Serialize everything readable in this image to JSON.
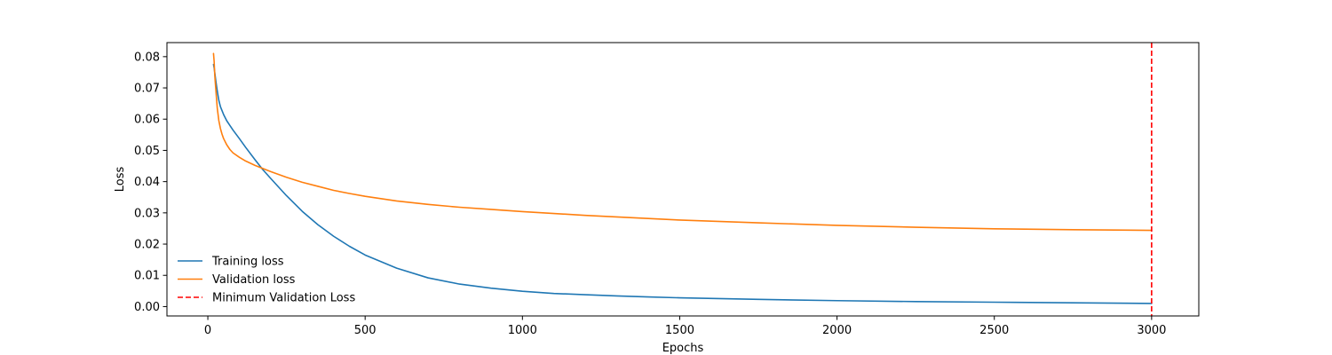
{
  "chart_data": {
    "type": "line",
    "title": "",
    "xlabel": "Epochs",
    "ylabel": "Loss",
    "xlim": [
      -130,
      3150
    ],
    "ylim": [
      -0.003,
      0.0845
    ],
    "x_ticks": [
      0,
      500,
      1000,
      1500,
      2000,
      2500,
      3000
    ],
    "x_tick_labels": [
      "0",
      "500",
      "1000",
      "1500",
      "2000",
      "2500",
      "3000"
    ],
    "y_ticks": [
      0.0,
      0.01,
      0.02,
      0.03,
      0.04,
      0.05,
      0.06,
      0.07,
      0.08
    ],
    "y_tick_labels": [
      "0.00",
      "0.01",
      "0.02",
      "0.03",
      "0.04",
      "0.05",
      "0.06",
      "0.07",
      "0.08"
    ],
    "grid": false,
    "legend_position": "lower-left",
    "series": [
      {
        "name": "Training loss",
        "color": "#1f77b4",
        "style": "solid",
        "x": [
          18,
          20,
          25,
          30,
          35,
          40,
          50,
          60,
          70,
          80,
          100,
          120,
          150,
          175,
          200,
          250,
          300,
          350,
          400,
          450,
          500,
          600,
          700,
          800,
          900,
          1000,
          1100,
          1200,
          1300,
          1400,
          1500,
          1750,
          2000,
          2250,
          2500,
          2750,
          3000
        ],
        "y": [
          0.0775,
          0.0765,
          0.0725,
          0.069,
          0.066,
          0.064,
          0.0615,
          0.0595,
          0.058,
          0.0565,
          0.0538,
          0.051,
          0.047,
          0.0438,
          0.041,
          0.0355,
          0.0305,
          0.0262,
          0.0225,
          0.0193,
          0.0165,
          0.0123,
          0.0092,
          0.0072,
          0.0059,
          0.0049,
          0.0042,
          0.0038,
          0.0034,
          0.0031,
          0.0028,
          0.0023,
          0.0019,
          0.0016,
          0.0014,
          0.0012,
          0.001
        ]
      },
      {
        "name": "Validation loss",
        "color": "#ff7f0e",
        "style": "solid",
        "x": [
          18,
          20,
          22,
          25,
          28,
          30,
          35,
          40,
          45,
          50,
          60,
          70,
          80,
          100,
          120,
          150,
          175,
          200,
          250,
          300,
          350,
          400,
          450,
          500,
          600,
          700,
          800,
          900,
          1000,
          1100,
          1200,
          1300,
          1400,
          1500,
          1750,
          2000,
          2250,
          2500,
          2750,
          3000
        ],
        "y": [
          0.081,
          0.0785,
          0.074,
          0.07,
          0.066,
          0.0635,
          0.0595,
          0.057,
          0.0552,
          0.0538,
          0.0518,
          0.0503,
          0.0492,
          0.0478,
          0.0466,
          0.0452,
          0.0442,
          0.0432,
          0.0414,
          0.0398,
          0.0385,
          0.0372,
          0.0362,
          0.0353,
          0.0338,
          0.0327,
          0.0318,
          0.0311,
          0.0304,
          0.0298,
          0.0292,
          0.0287,
          0.0282,
          0.0277,
          0.0268,
          0.026,
          0.0254,
          0.0249,
          0.0246,
          0.0244
        ]
      }
    ],
    "vlines": [
      {
        "name": "Minimum Validation Loss",
        "x": 3000,
        "color": "#ff0000",
        "style": "dashed"
      }
    ]
  }
}
